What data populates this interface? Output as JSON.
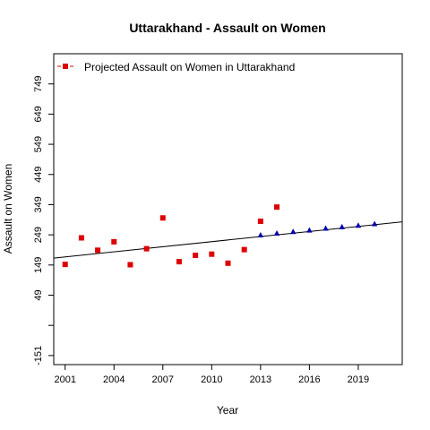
{
  "chart_data": {
    "type": "scatter",
    "title": "Uttarakhand  -  Assault on Women",
    "xlabel": "Year",
    "ylabel": "Assault on Women",
    "xlim": [
      2000.3,
      2021.7
    ],
    "ylim": [
      -181,
      849
    ],
    "x_ticks": [
      2001,
      2004,
      2007,
      2010,
      2013,
      2016,
      2019
    ],
    "y_ticks": [
      -151,
      -51,
      49,
      149,
      249,
      349,
      449,
      549,
      649,
      749
    ],
    "y_tick_labels": [
      "-151",
      "",
      "49",
      "149",
      "249",
      "349",
      "449",
      "549",
      "649",
      "749"
    ],
    "grid": false,
    "legend": {
      "position": "top-left",
      "entries": [
        "Projected  Assault on Women  in  Uttarakhand"
      ]
    },
    "colors": {
      "actual": "#dd0000",
      "projected": "#0000aa",
      "trend": "#000000"
    },
    "series": [
      {
        "marker": "square",
        "x": [
          2001,
          2002,
          2003,
          2004,
          2005,
          2006,
          2007,
          2008,
          2009,
          2010,
          2011,
          2012,
          2013,
          2014
        ],
        "y": [
          151,
          239,
          198,
          226,
          150,
          203,
          305,
          160,
          181,
          185,
          155,
          200,
          294,
          341
        ]
      },
      {
        "marker": "triangle",
        "x": [
          2013,
          2014,
          2015,
          2016,
          2017,
          2018,
          2019,
          2020
        ],
        "y": [
          248,
          254,
          259,
          264,
          270,
          275,
          280,
          285
        ]
      },
      {
        "type": "line",
        "x": [
          2000.3,
          2021.7
        ],
        "y": [
          172,
          292
        ]
      }
    ]
  }
}
